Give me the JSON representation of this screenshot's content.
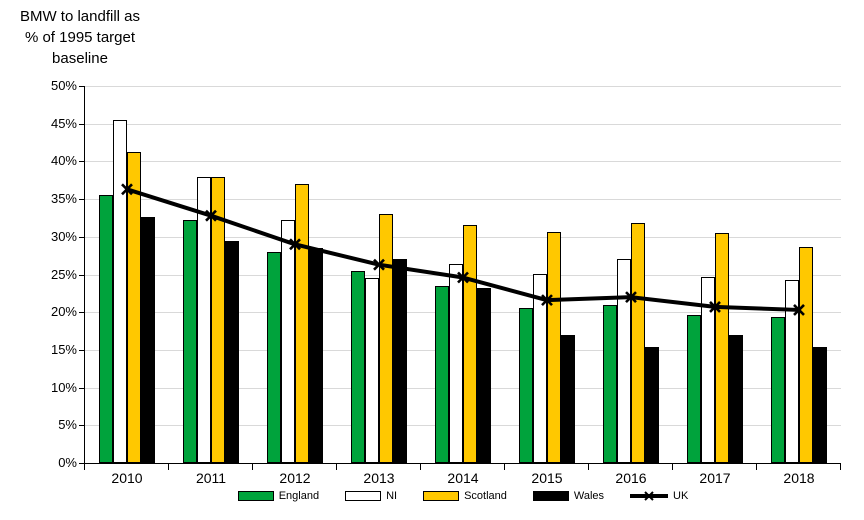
{
  "title": {
    "lines": [
      "BMW to landfill as",
      "% of 1995 target",
      "baseline"
    ]
  },
  "chart_data": {
    "type": "bar",
    "title": "BMW to landfill as % of 1995 target baseline",
    "categories": [
      "2010",
      "2011",
      "2012",
      "2013",
      "2014",
      "2015",
      "2016",
      "2017",
      "2018"
    ],
    "series": [
      {
        "name": "England",
        "type": "bar",
        "color": "#00A33C",
        "values": [
          35.6,
          32.2,
          28.0,
          25.5,
          23.5,
          20.6,
          21.0,
          19.6,
          19.4
        ]
      },
      {
        "name": "NI",
        "type": "bar",
        "color": "#FFFFFF",
        "values": [
          45.5,
          37.9,
          32.2,
          24.5,
          26.4,
          25.1,
          27.1,
          24.7,
          24.3
        ]
      },
      {
        "name": "Scotland",
        "type": "bar",
        "color": "#FFC800",
        "values": [
          41.3,
          37.9,
          37.0,
          33.0,
          31.6,
          30.6,
          31.8,
          30.5,
          28.6
        ]
      },
      {
        "name": "Wales",
        "type": "bar",
        "color": "#000000",
        "values": [
          32.6,
          29.4,
          28.5,
          27.1,
          23.2,
          17.0,
          15.4,
          17.0,
          15.4
        ]
      },
      {
        "name": "UK",
        "type": "line",
        "color": "#000000",
        "marker": "x",
        "values": [
          36.3,
          32.8,
          29.0,
          26.3,
          24.6,
          21.6,
          22.0,
          20.7,
          20.3
        ]
      }
    ],
    "ylim": [
      0,
      50
    ],
    "ytick_step": 5,
    "ytick_labels": [
      "0%",
      "5%",
      "10%",
      "15%",
      "20%",
      "25%",
      "30%",
      "35%",
      "40%",
      "45%",
      "50%"
    ],
    "grid": true,
    "gridline_color": "#D9D9D9",
    "axis_color": "#000000",
    "bar_border_color": "#000000",
    "background": "#FFFFFF",
    "legend_position": "bottom"
  }
}
